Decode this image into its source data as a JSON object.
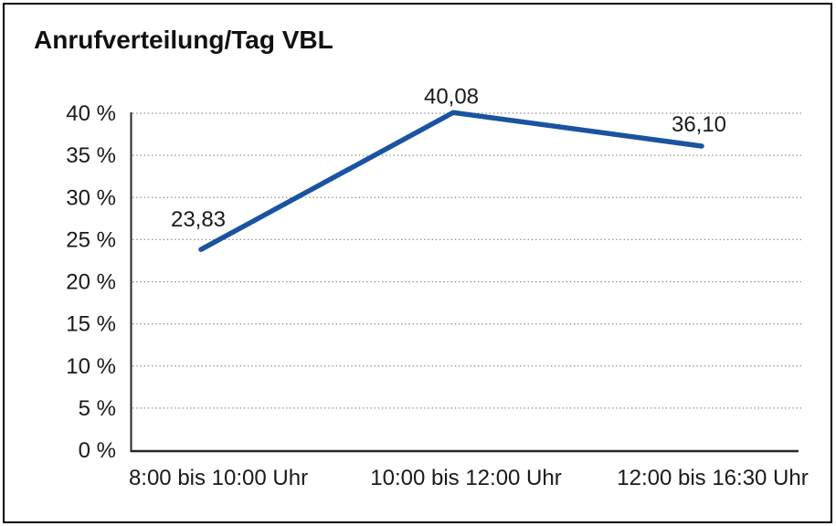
{
  "chart_data": {
    "type": "line",
    "title": "Anrufverteilung/Tag VBL",
    "categories": [
      "8:00 bis 10:00 Uhr",
      "10:00 bis 12:00 Uhr",
      "12:00 bis 16:30 Uhr"
    ],
    "values": [
      23.83,
      40.08,
      36.1
    ],
    "data_labels": [
      "23,83",
      "40,08",
      "36,10"
    ],
    "xlabel": "",
    "ylabel": "",
    "y_axis": {
      "min": 0,
      "max": 40,
      "step": 5,
      "tick_labels": [
        "0 %",
        "5 %",
        "10 %",
        "15 %",
        "20 %",
        "25 %",
        "30 %",
        "35 %",
        "40 %"
      ]
    },
    "grid": "horizontal-dotted",
    "legend": "none",
    "line_color": "#1a53a1",
    "axis_color": "#262626",
    "gridline_color": "#8b8b8b",
    "text_color": "#1a1a1a",
    "background_color": "#ffffff"
  }
}
